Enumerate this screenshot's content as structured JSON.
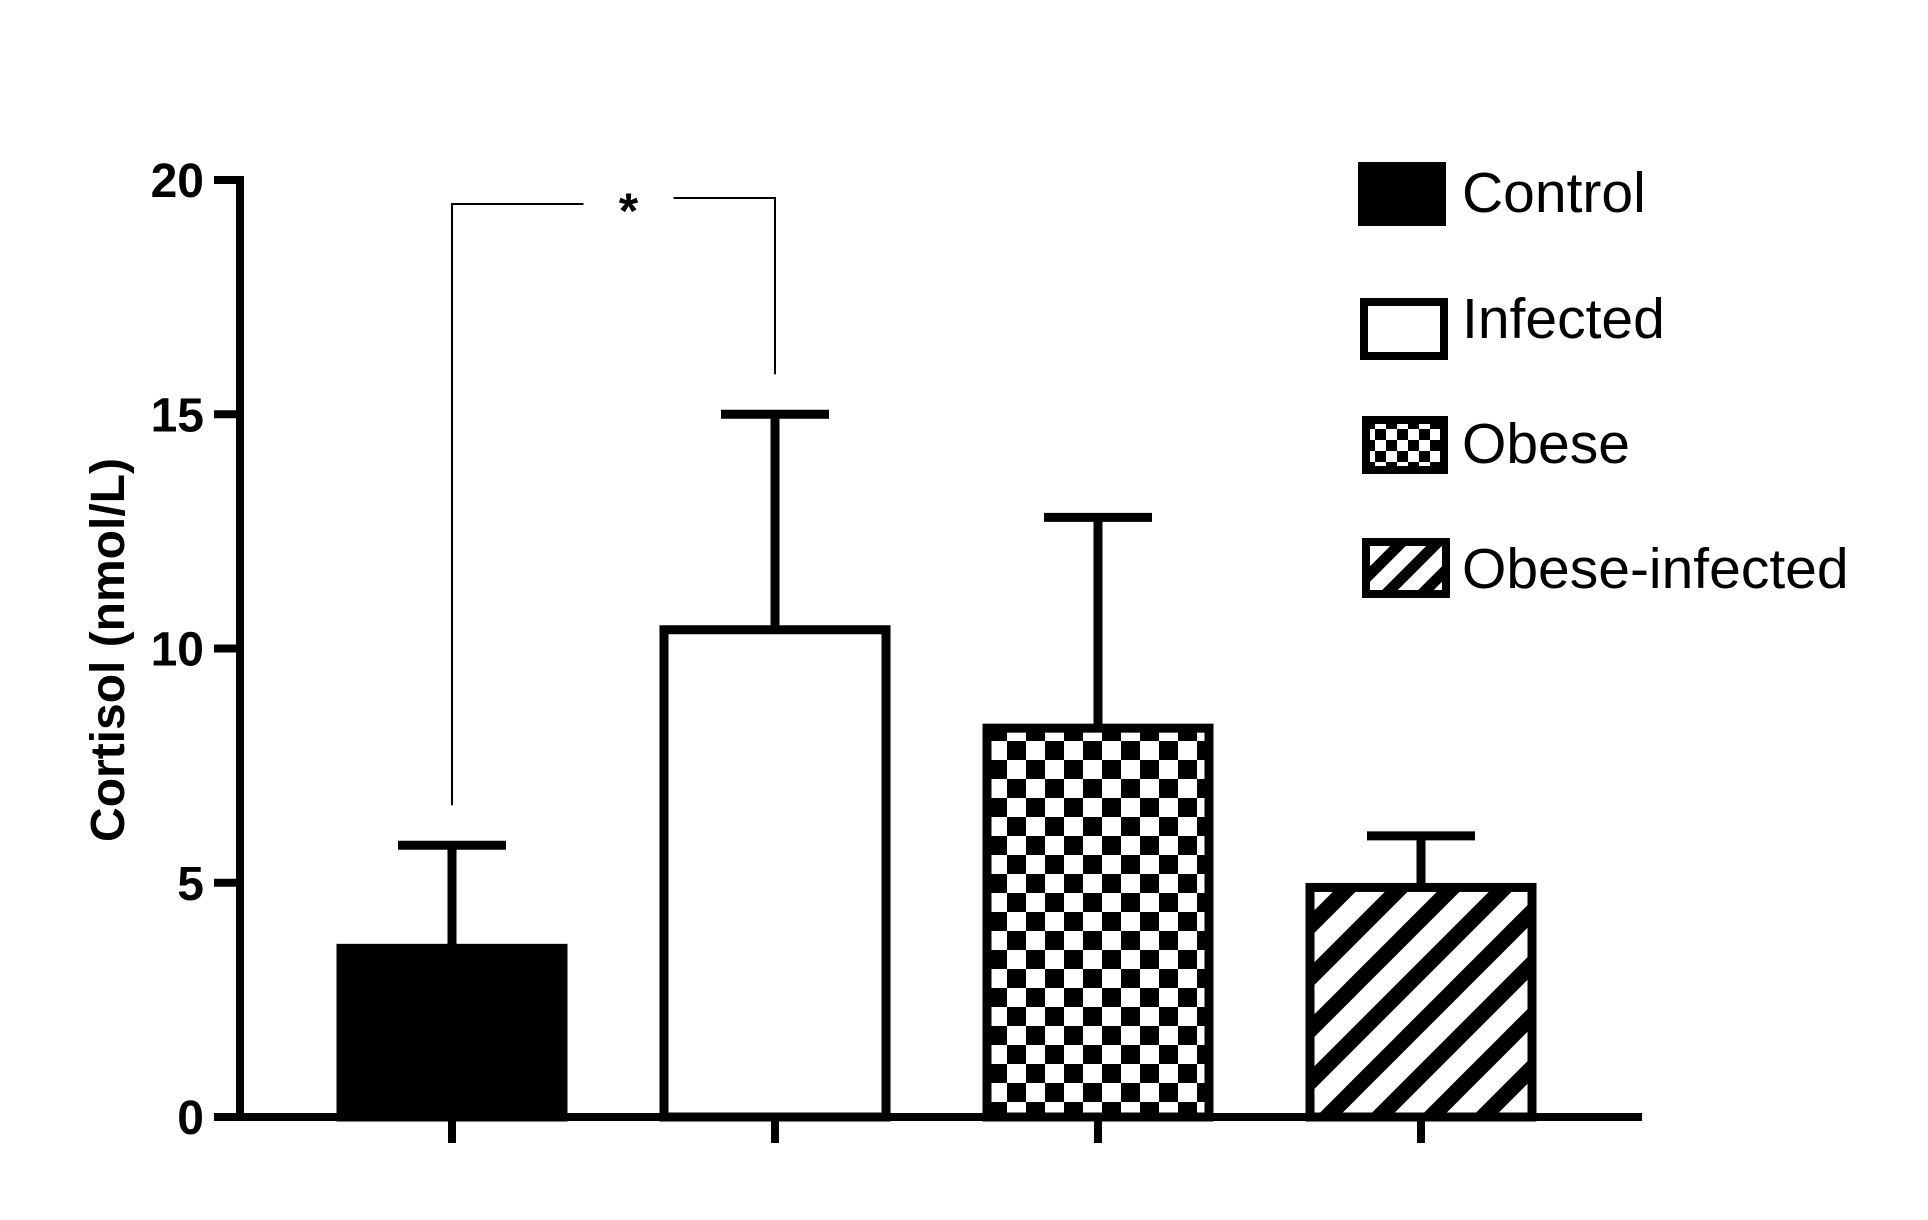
{
  "chart_data": {
    "type": "bar",
    "title": "",
    "xlabel": "",
    "ylabel": "Cortisol (nmol/L)",
    "ylim": [
      0,
      20
    ],
    "yticks": [
      0,
      5,
      10,
      15,
      20
    ],
    "categories": [
      "Control",
      "Infected",
      "Obese",
      "Obese-infected"
    ],
    "values": [
      3.6,
      10.4,
      8.3,
      4.9
    ],
    "errors": [
      2.2,
      4.6,
      4.5,
      1.1
    ],
    "fills": [
      "solid",
      "white",
      "checker",
      "diagonal"
    ],
    "legend": {
      "position": "top-right",
      "entries": [
        "Control",
        "Infected",
        "Obese",
        "Obese-infected"
      ]
    },
    "significance": [
      {
        "from": "Control",
        "to": "Infected",
        "label": "*"
      }
    ]
  }
}
